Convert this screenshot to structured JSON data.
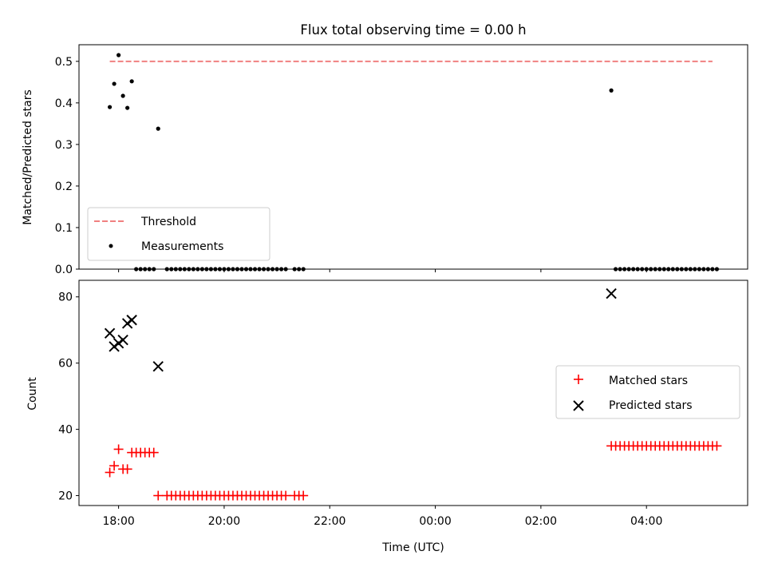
{
  "chart_data": [
    {
      "type": "scatter",
      "title": "Flux total observing time = 0.00 h",
      "xlabel": "",
      "ylabel": "Matched/Predicted stars",
      "ylim": [
        0,
        0.54
      ],
      "yticks": [
        0.0,
        0.1,
        0.2,
        0.3,
        0.4,
        0.5
      ],
      "ytick_labels": [
        "0.0",
        "0.1",
        "0.2",
        "0.3",
        "0.4",
        "0.5"
      ],
      "threshold": {
        "name": "Threshold",
        "value": 0.5,
        "x_start": "17:50",
        "x_end": "05:15",
        "color": "#f08080"
      },
      "series": [
        {
          "name": "Measurements",
          "color": "#000000",
          "points": [
            [
              "17:50",
              0.39
            ],
            [
              "17:55",
              0.446
            ],
            [
              "18:00",
              0.515
            ],
            [
              "18:05",
              0.417
            ],
            [
              "18:10",
              0.388
            ],
            [
              "18:15",
              0.452
            ],
            [
              "18:45",
              0.338
            ],
            [
              "18:20",
              0.0
            ],
            [
              "18:25",
              0.0
            ],
            [
              "18:30",
              0.0
            ],
            [
              "18:35",
              0.0
            ],
            [
              "18:40",
              0.0
            ],
            [
              "18:55",
              0.0
            ],
            [
              "19:00",
              0.0
            ],
            [
              "19:05",
              0.0
            ],
            [
              "19:10",
              0.0
            ],
            [
              "19:15",
              0.0
            ],
            [
              "19:20",
              0.0
            ],
            [
              "19:25",
              0.0
            ],
            [
              "19:30",
              0.0
            ],
            [
              "19:35",
              0.0
            ],
            [
              "19:40",
              0.0
            ],
            [
              "19:45",
              0.0
            ],
            [
              "19:50",
              0.0
            ],
            [
              "19:55",
              0.0
            ],
            [
              "20:00",
              0.0
            ],
            [
              "20:05",
              0.0
            ],
            [
              "20:10",
              0.0
            ],
            [
              "20:15",
              0.0
            ],
            [
              "20:20",
              0.0
            ],
            [
              "20:25",
              0.0
            ],
            [
              "20:30",
              0.0
            ],
            [
              "20:35",
              0.0
            ],
            [
              "20:40",
              0.0
            ],
            [
              "20:45",
              0.0
            ],
            [
              "20:50",
              0.0
            ],
            [
              "20:55",
              0.0
            ],
            [
              "21:00",
              0.0
            ],
            [
              "21:05",
              0.0
            ],
            [
              "21:10",
              0.0
            ],
            [
              "21:20",
              0.0
            ],
            [
              "21:25",
              0.0
            ],
            [
              "21:30",
              0.0
            ],
            [
              "03:20",
              0.43
            ],
            [
              "03:25",
              0.0
            ],
            [
              "03:30",
              0.0
            ],
            [
              "03:35",
              0.0
            ],
            [
              "03:40",
              0.0
            ],
            [
              "03:45",
              0.0
            ],
            [
              "03:50",
              0.0
            ],
            [
              "03:55",
              0.0
            ],
            [
              "04:00",
              0.0
            ],
            [
              "04:05",
              0.0
            ],
            [
              "04:10",
              0.0
            ],
            [
              "04:15",
              0.0
            ],
            [
              "04:20",
              0.0
            ],
            [
              "04:25",
              0.0
            ],
            [
              "04:30",
              0.0
            ],
            [
              "04:35",
              0.0
            ],
            [
              "04:40",
              0.0
            ],
            [
              "04:45",
              0.0
            ],
            [
              "04:50",
              0.0
            ],
            [
              "04:55",
              0.0
            ],
            [
              "05:00",
              0.0
            ],
            [
              "05:05",
              0.0
            ],
            [
              "05:10",
              0.0
            ],
            [
              "05:15",
              0.0
            ],
            [
              "05:20",
              0.0
            ]
          ]
        }
      ],
      "legend": {
        "location": "lower-left",
        "entries": [
          "Threshold",
          "Measurements"
        ]
      }
    },
    {
      "type": "scatter",
      "title": "",
      "xlabel": "Time (UTC)",
      "ylabel": "Count",
      "ylim": [
        17,
        85
      ],
      "yticks": [
        20,
        40,
        60,
        80
      ],
      "ytick_labels": [
        "20",
        "40",
        "60",
        "80"
      ],
      "xlim": [
        "17:15",
        "05:55"
      ],
      "xticks": [
        "18:00",
        "20:00",
        "22:00",
        "00:00",
        "02:00",
        "04:00"
      ],
      "xtick_labels": [
        "18:00",
        "20:00",
        "22:00",
        "00:00",
        "02:00",
        "04:00"
      ],
      "series": [
        {
          "name": "Matched stars",
          "marker": "plus",
          "color": "#ff0000",
          "points": [
            [
              "17:50",
              27
            ],
            [
              "17:55",
              29
            ],
            [
              "18:00",
              34
            ],
            [
              "18:05",
              28
            ],
            [
              "18:10",
              28
            ],
            [
              "18:15",
              33
            ],
            [
              "18:20",
              33
            ],
            [
              "18:25",
              33
            ],
            [
              "18:30",
              33
            ],
            [
              "18:35",
              33
            ],
            [
              "18:40",
              33
            ],
            [
              "18:45",
              20
            ],
            [
              "18:55",
              20
            ],
            [
              "19:00",
              20
            ],
            [
              "19:05",
              20
            ],
            [
              "19:10",
              20
            ],
            [
              "19:15",
              20
            ],
            [
              "19:20",
              20
            ],
            [
              "19:25",
              20
            ],
            [
              "19:30",
              20
            ],
            [
              "19:35",
              20
            ],
            [
              "19:40",
              20
            ],
            [
              "19:45",
              20
            ],
            [
              "19:50",
              20
            ],
            [
              "19:55",
              20
            ],
            [
              "20:00",
              20
            ],
            [
              "20:05",
              20
            ],
            [
              "20:10",
              20
            ],
            [
              "20:15",
              20
            ],
            [
              "20:20",
              20
            ],
            [
              "20:25",
              20
            ],
            [
              "20:30",
              20
            ],
            [
              "20:35",
              20
            ],
            [
              "20:40",
              20
            ],
            [
              "20:45",
              20
            ],
            [
              "20:50",
              20
            ],
            [
              "20:55",
              20
            ],
            [
              "21:00",
              20
            ],
            [
              "21:05",
              20
            ],
            [
              "21:10",
              20
            ],
            [
              "21:20",
              20
            ],
            [
              "21:25",
              20
            ],
            [
              "21:30",
              20
            ],
            [
              "03:20",
              35
            ],
            [
              "03:25",
              35
            ],
            [
              "03:30",
              35
            ],
            [
              "03:35",
              35
            ],
            [
              "03:40",
              35
            ],
            [
              "03:45",
              35
            ],
            [
              "03:50",
              35
            ],
            [
              "03:55",
              35
            ],
            [
              "04:00",
              35
            ],
            [
              "04:05",
              35
            ],
            [
              "04:10",
              35
            ],
            [
              "04:15",
              35
            ],
            [
              "04:20",
              35
            ],
            [
              "04:25",
              35
            ],
            [
              "04:30",
              35
            ],
            [
              "04:35",
              35
            ],
            [
              "04:40",
              35
            ],
            [
              "04:45",
              35
            ],
            [
              "04:50",
              35
            ],
            [
              "04:55",
              35
            ],
            [
              "05:00",
              35
            ],
            [
              "05:05",
              35
            ],
            [
              "05:10",
              35
            ],
            [
              "05:15",
              35
            ],
            [
              "05:20",
              35
            ]
          ]
        },
        {
          "name": "Predicted stars",
          "marker": "x",
          "color": "#000000",
          "points": [
            [
              "17:50",
              69
            ],
            [
              "17:55",
              65
            ],
            [
              "18:00",
              66
            ],
            [
              "18:05",
              67
            ],
            [
              "18:10",
              72
            ],
            [
              "18:15",
              73
            ],
            [
              "18:45",
              59
            ],
            [
              "03:20",
              81
            ]
          ]
        }
      ],
      "legend": {
        "location": "center-right",
        "entries": [
          "Matched stars",
          "Predicted stars"
        ]
      }
    }
  ]
}
